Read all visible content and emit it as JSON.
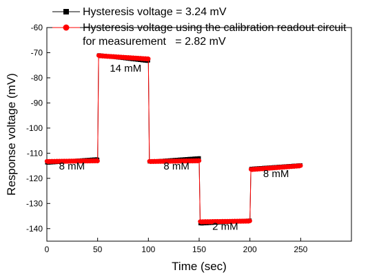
{
  "chart_data": {
    "type": "line",
    "xlabel": "Time (sec)",
    "ylabel": "Response voltage (mV)",
    "xlim": [
      0,
      300
    ],
    "ylim": [
      -145,
      -60
    ],
    "xticks": [
      0,
      50,
      100,
      150,
      200,
      250
    ],
    "yticks": [
      -140,
      -130,
      -120,
      -110,
      -100,
      -90,
      -80,
      -70,
      -60
    ],
    "grid": false,
    "legend_position": "top-left",
    "series": [
      {
        "name": "Hysteresis voltage = 3.24 mV",
        "color": "#000000",
        "marker": "square",
        "segments": [
          {
            "x": [
              0,
              50
            ],
            "y": [
              -113.8,
              -112.4
            ]
          },
          {
            "x": [
              51,
              100
            ],
            "y": [
              -71.0,
              -73.3
            ]
          },
          {
            "x": [
              101,
              150
            ],
            "y": [
              -113.4,
              -112.0
            ]
          },
          {
            "x": [
              151,
              200
            ],
            "y": [
              -138.0,
              -136.8
            ]
          },
          {
            "x": [
              201,
              250
            ],
            "y": [
              -116.2,
              -114.8
            ]
          }
        ]
      },
      {
        "name_lines": [
          "Hysteresis voltage using the calibration readout circuit",
          "for measurement   = 2.82 mV"
        ],
        "color": "#ff0000",
        "marker": "circle",
        "segments": [
          {
            "x": [
              0,
              50
            ],
            "y": [
              -113.3,
              -113.0
            ]
          },
          {
            "x": [
              51,
              100
            ],
            "y": [
              -71.2,
              -72.5
            ]
          },
          {
            "x": [
              101,
              150
            ],
            "y": [
              -113.3,
              -113.0
            ]
          },
          {
            "x": [
              151,
              200
            ],
            "y": [
              -137.3,
              -137.0
            ]
          },
          {
            "x": [
              201,
              250
            ],
            "y": [
              -116.5,
              -115.0
            ]
          }
        ]
      }
    ],
    "annotations": [
      {
        "text": "8 mM",
        "x": 12,
        "y": -116.5
      },
      {
        "text": "14 mM",
        "x": 62,
        "y": -77.5
      },
      {
        "text": "8 mM",
        "x": 115,
        "y": -116.5
      },
      {
        "text": "2 mM",
        "x": 163,
        "y": -140.5
      },
      {
        "text": "8 mM",
        "x": 213,
        "y": -119.5
      }
    ]
  }
}
